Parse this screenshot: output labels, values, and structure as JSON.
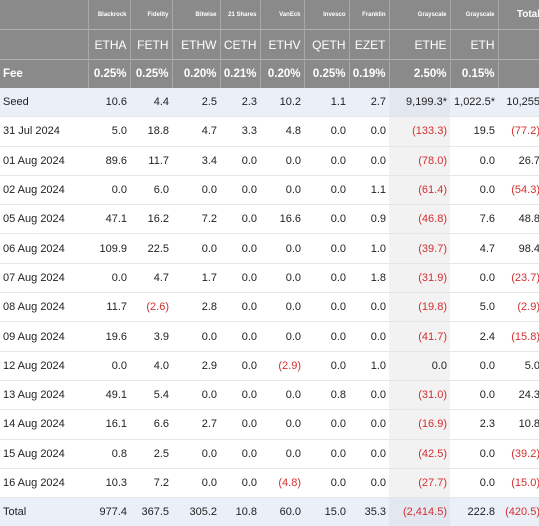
{
  "header": {
    "issuers": [
      "",
      "Blackrock",
      "Fidelity",
      "Bitwise",
      "21 Shares",
      "VanEck",
      "Invesco",
      "Franklin",
      "Grayscale",
      "Grayscale",
      "Total"
    ],
    "tickers": [
      "",
      "ETHA",
      "FETH",
      "ETHW",
      "CETH",
      "ETHV",
      "QETH",
      "EZET",
      "ETHE",
      "ETH",
      ""
    ],
    "fee_label": "Fee",
    "fees": [
      "0.25%",
      "0.25%",
      "0.20%",
      "0.21%",
      "0.20%",
      "0.25%",
      "0.19%",
      "2.50%",
      "0.15%",
      ""
    ]
  },
  "rows": [
    {
      "label": "Seed",
      "values": [
        "10.6",
        "4.4",
        "2.5",
        "2.3",
        "10.2",
        "1.1",
        "2.7",
        "9,199.3*",
        "1,022.5*",
        "10,255"
      ]
    },
    {
      "label": "31 Jul 2024",
      "values": [
        "5.0",
        "18.8",
        "4.7",
        "3.3",
        "4.8",
        "0.0",
        "0.0",
        "(133.3)",
        "19.5",
        "(77.2)"
      ]
    },
    {
      "label": "01 Aug 2024",
      "values": [
        "89.6",
        "11.7",
        "3.4",
        "0.0",
        "0.0",
        "0.0",
        "0.0",
        "(78.0)",
        "0.0",
        "26.7"
      ]
    },
    {
      "label": "02 Aug 2024",
      "values": [
        "0.0",
        "6.0",
        "0.0",
        "0.0",
        "0.0",
        "0.0",
        "1.1",
        "(61.4)",
        "0.0",
        "(54.3)"
      ]
    },
    {
      "label": "05 Aug 2024",
      "values": [
        "47.1",
        "16.2",
        "7.2",
        "0.0",
        "16.6",
        "0.0",
        "0.9",
        "(46.8)",
        "7.6",
        "48.8"
      ]
    },
    {
      "label": "06 Aug 2024",
      "values": [
        "109.9",
        "22.5",
        "0.0",
        "0.0",
        "0.0",
        "0.0",
        "1.0",
        "(39.7)",
        "4.7",
        "98.4"
      ]
    },
    {
      "label": "07 Aug 2024",
      "values": [
        "0.0",
        "4.7",
        "1.7",
        "0.0",
        "0.0",
        "0.0",
        "1.8",
        "(31.9)",
        "0.0",
        "(23.7)"
      ]
    },
    {
      "label": "08 Aug 2024",
      "values": [
        "11.7",
        "(2.6)",
        "2.8",
        "0.0",
        "0.0",
        "0.0",
        "0.0",
        "(19.8)",
        "5.0",
        "(2.9)"
      ]
    },
    {
      "label": "09 Aug 2024",
      "values": [
        "19.6",
        "3.9",
        "0.0",
        "0.0",
        "0.0",
        "0.0",
        "0.0",
        "(41.7)",
        "2.4",
        "(15.8)"
      ]
    },
    {
      "label": "12 Aug 2024",
      "values": [
        "0.0",
        "4.0",
        "2.9",
        "0.0",
        "(2.9)",
        "0.0",
        "1.0",
        "0.0",
        "0.0",
        "5.0"
      ]
    },
    {
      "label": "13 Aug 2024",
      "values": [
        "49.1",
        "5.4",
        "0.0",
        "0.0",
        "0.0",
        "0.8",
        "0.0",
        "(31.0)",
        "0.0",
        "24.3"
      ]
    },
    {
      "label": "14 Aug 2024",
      "values": [
        "16.1",
        "6.6",
        "2.7",
        "0.0",
        "0.0",
        "0.0",
        "0.0",
        "(16.9)",
        "2.3",
        "10.8"
      ]
    },
    {
      "label": "15 Aug 2024",
      "values": [
        "0.8",
        "2.5",
        "0.0",
        "0.0",
        "0.0",
        "0.0",
        "0.0",
        "(42.5)",
        "0.0",
        "(39.2)"
      ]
    },
    {
      "label": "16 Aug 2024",
      "values": [
        "10.3",
        "7.2",
        "0.0",
        "0.0",
        "(4.8)",
        "0.0",
        "0.0",
        "(27.7)",
        "0.0",
        "(15.0)"
      ]
    },
    {
      "label": "Total",
      "values": [
        "977.4",
        "367.5",
        "305.2",
        "10.8",
        "60.0",
        "15.0",
        "35.3",
        "(2,414.5)",
        "222.8",
        "(420.5)"
      ]
    }
  ],
  "colors": {
    "header_bg": "#8a8a8a",
    "negative": "#d32f2f",
    "seed_total_bg": "#eaeff8",
    "ethe_col_bg": "#f2f2f2"
  }
}
